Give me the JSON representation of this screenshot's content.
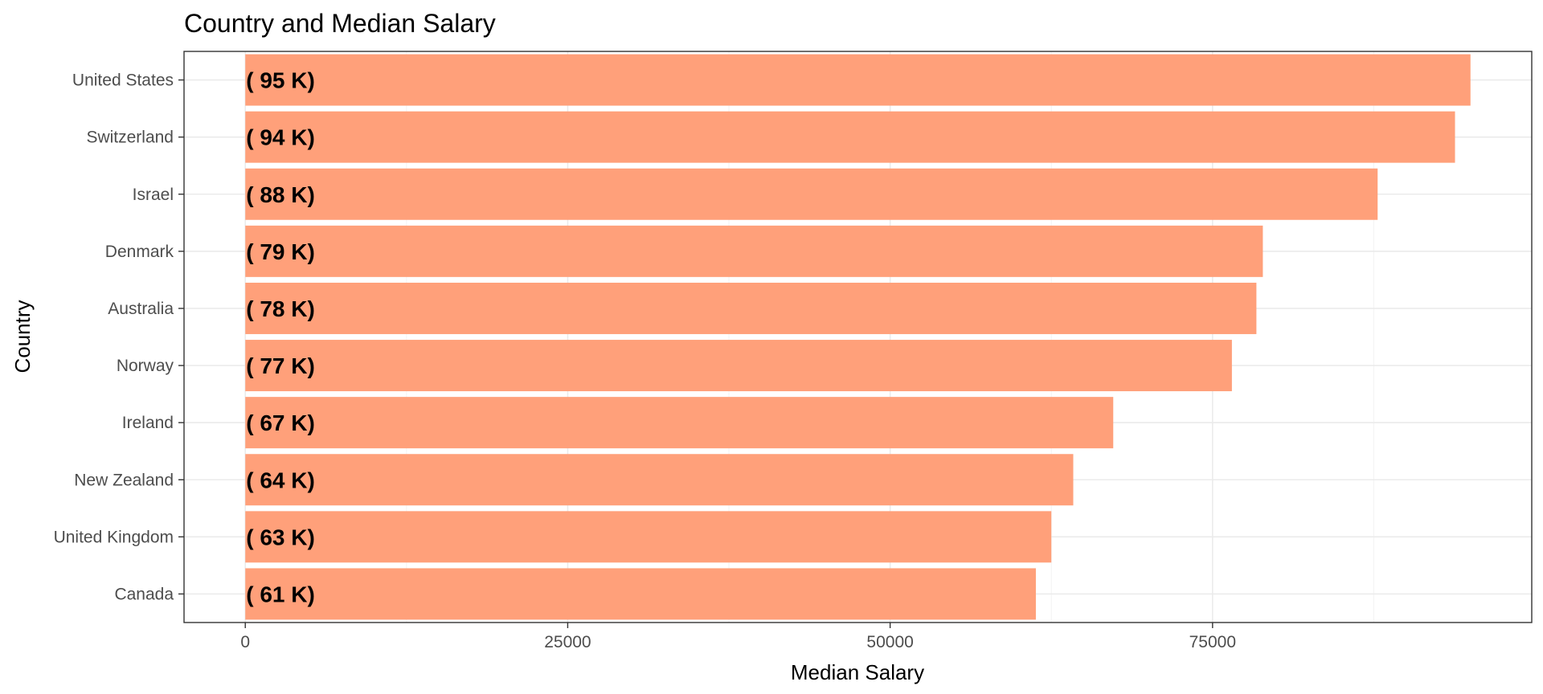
{
  "chart_data": {
    "type": "bar",
    "orientation": "horizontal",
    "title": "Country and Median Salary",
    "xlabel": "Median Salary",
    "ylabel": "Country",
    "categories": [
      "United States",
      "Switzerland",
      "Israel",
      "Denmark",
      "Australia",
      "Norway",
      "Ireland",
      "New Zealand",
      "United Kingdom",
      "Canada"
    ],
    "values": [
      95000,
      93800,
      87800,
      78900,
      78400,
      76500,
      67300,
      64200,
      62500,
      61300
    ],
    "data_labels": [
      "( 95 K)",
      "( 94 K)",
      "( 88 K)",
      "( 79 K)",
      "( 78 K)",
      "( 77 K)",
      "( 67 K)",
      "( 64 K)",
      "( 63 K)",
      "( 61 K)"
    ],
    "x_ticks": [
      0,
      25000,
      50000,
      75000
    ],
    "x_tick_labels": [
      "0",
      "25000",
      "50000",
      "75000"
    ],
    "xlim": [
      -4750,
      99750
    ],
    "grid": true,
    "legend": "none",
    "colors": {
      "bar": "#ffa07a",
      "panel_border": "#333333",
      "grid": "#ebebeb",
      "background": "#ffffff"
    }
  }
}
